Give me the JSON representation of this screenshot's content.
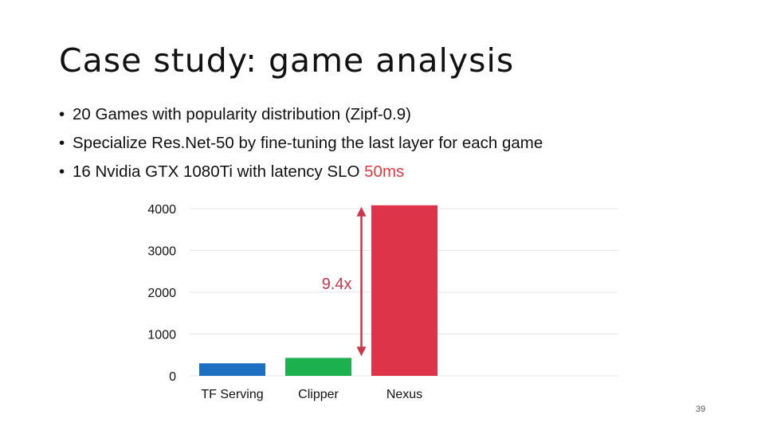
{
  "slide": {
    "title": "Case study: game analysis",
    "bullets": [
      {
        "text": "20 Games with popularity distribution (Zipf-0.9)"
      },
      {
        "text": "Specialize Res.Net-50 by fine-tuning the last layer for each game"
      },
      {
        "text": "16 Nvidia GTX 1080Ti with latency SLO ",
        "highlight": "50ms"
      }
    ],
    "bullet_glyph": "•",
    "page_number": "39"
  },
  "chart_data": {
    "type": "bar",
    "categories": [
      "TF Serving",
      "Clipper",
      "Nexus"
    ],
    "values": [
      300,
      430,
      4080
    ],
    "colors": [
      "#1c6fc1",
      "#1db04f",
      "#de344a"
    ],
    "ylim": [
      0,
      4000
    ],
    "yticks": [
      0,
      1000,
      2000,
      3000,
      4000
    ],
    "grid": true,
    "annotation": {
      "text": "9.4x",
      "from": "Clipper",
      "to": "Nexus",
      "color": "#c8374b"
    }
  }
}
